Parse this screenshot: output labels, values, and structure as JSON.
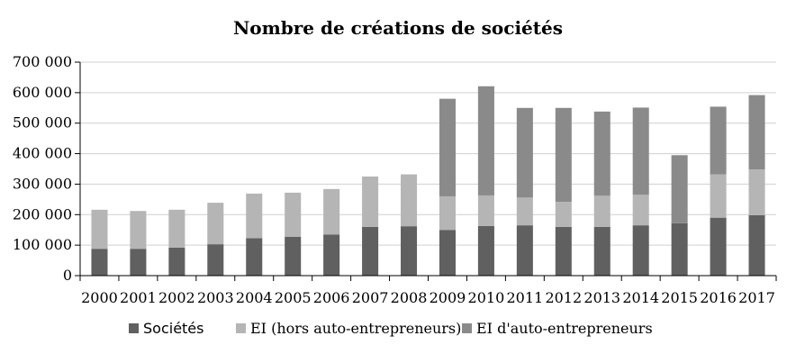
{
  "chart_data": {
    "type": "bar",
    "stacked": true,
    "title": "Nombre de créations de sociétés",
    "xlabel": "",
    "ylabel": "",
    "ylim": [
      0,
      700000
    ],
    "yticks": [
      "0",
      "100 000",
      "200 000",
      "300 000",
      "400 000",
      "500 000",
      "600 000",
      "700 000"
    ],
    "ytick_values": [
      0,
      100000,
      200000,
      300000,
      400000,
      500000,
      600000,
      700000
    ],
    "grid": true,
    "legend_position": "bottom",
    "categories": [
      "2000",
      "2001",
      "2002",
      "2003",
      "2004",
      "2005",
      "2006",
      "2007",
      "2008",
      "2009",
      "2010",
      "2011",
      "2012",
      "2013",
      "2014",
      "2015",
      "2016",
      "2017"
    ],
    "series": [
      {
        "name": "Sociétés",
        "color": "#606060",
        "values": [
          88000,
          88000,
          92000,
          103000,
          123000,
          127000,
          135000,
          160000,
          162000,
          150000,
          163000,
          165000,
          160000,
          160000,
          165000,
          172000,
          190000,
          198000
        ]
      },
      {
        "name": "EI (hors auto-entrepreneurs)",
        "color": "#b5b5b5",
        "values": [
          128000,
          124000,
          124000,
          136000,
          146000,
          145000,
          149000,
          165000,
          170000,
          110000,
          100000,
          91000,
          82000,
          102000,
          100000,
          0,
          142000,
          150000
        ]
      },
      {
        "name": "EI d'auto-entrepreneurs",
        "color": "#8a8a8a",
        "values": [
          0,
          0,
          0,
          0,
          0,
          0,
          0,
          0,
          0,
          320000,
          358000,
          294000,
          308000,
          276000,
          286000,
          223000,
          222000,
          244000
        ]
      }
    ]
  }
}
